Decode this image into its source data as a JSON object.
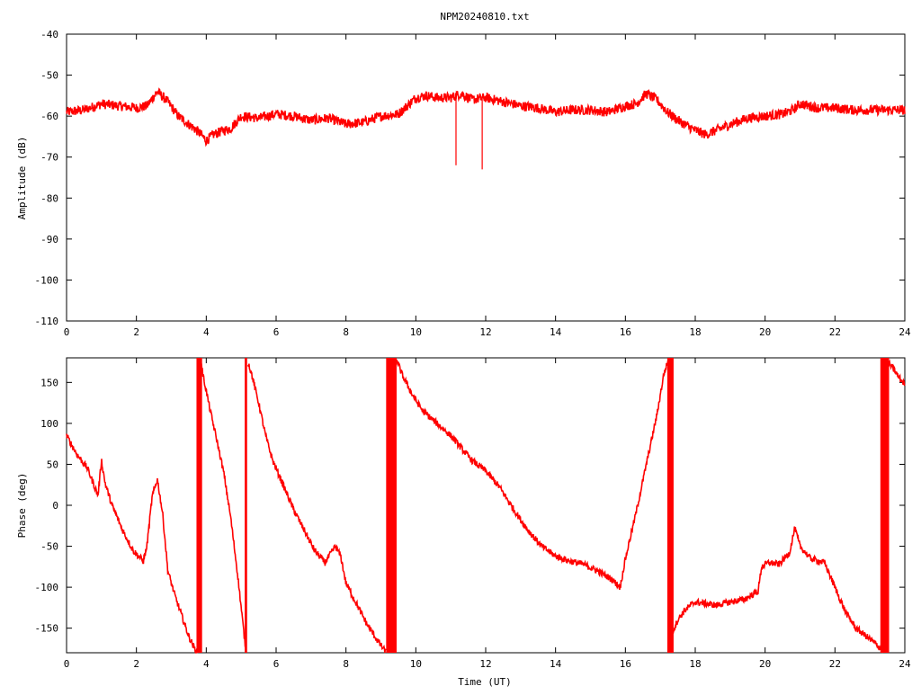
{
  "figure": {
    "title": "NPM20240810.txt",
    "xlabel": "Time (UT)"
  },
  "colors": {
    "series": "#ff0000",
    "axis": "#000000",
    "background": "#ffffff"
  },
  "chart_data": [
    {
      "type": "line",
      "id": "amplitude",
      "title": "NPM20240810.txt",
      "xlabel": "",
      "ylabel": "Amplitude (dB)",
      "xlim": [
        0,
        24
      ],
      "ylim": [
        -110,
        -40
      ],
      "xticks": [
        0,
        2,
        4,
        6,
        8,
        10,
        12,
        14,
        16,
        18,
        20,
        22,
        24
      ],
      "yticks": [
        -110,
        -100,
        -90,
        -80,
        -70,
        -60,
        -50,
        -40
      ],
      "grid": false,
      "series": [
        {
          "x": [
            0,
            0.5,
            1.0,
            1.5,
            2.0,
            2.3,
            2.6,
            2.9,
            3.2,
            3.5,
            3.8,
            4.0,
            4.2,
            4.5,
            4.7,
            5.0,
            5.5,
            6.0,
            6.5,
            7.0,
            7.5,
            8.0,
            8.5,
            9.0,
            9.5,
            10.0,
            10.3,
            10.6,
            11.0,
            11.3,
            11.6,
            12.0,
            12.5,
            13.0,
            13.5,
            14.0,
            14.5,
            15.0,
            15.5,
            16.0,
            16.3,
            16.6,
            16.9,
            17.2,
            17.5,
            17.8,
            18.0,
            18.3,
            18.6,
            19.0,
            19.5,
            20.0,
            20.5,
            20.8,
            21.0,
            21.5,
            22.0,
            22.5,
            23.0,
            23.5,
            24.0
          ],
          "y": [
            -59,
            -58.5,
            -57,
            -57.5,
            -58,
            -57.5,
            -54,
            -56.5,
            -60,
            -62,
            -64,
            -66,
            -64.5,
            -63.5,
            -63,
            -60,
            -60.5,
            -59.5,
            -60,
            -61,
            -60.5,
            -62,
            -61.5,
            -60,
            -59.5,
            -55.5,
            -55,
            -55.5,
            -55.5,
            -54.5,
            -56,
            -55.5,
            -56.5,
            -57.5,
            -58,
            -59,
            -58.5,
            -58.5,
            -59,
            -57.5,
            -57,
            -54.5,
            -56,
            -59,
            -61,
            -62.5,
            -63.5,
            -64.5,
            -63.5,
            -62,
            -60.5,
            -60,
            -59.5,
            -58.5,
            -57,
            -58,
            -58,
            -58.5,
            -58.5,
            -58.5,
            -58.5
          ],
          "spikes": [
            {
              "x": 11.15,
              "y": -72
            },
            {
              "x": 11.9,
              "y": -73
            }
          ],
          "noise_db": 1.2
        }
      ]
    },
    {
      "type": "line",
      "id": "phase",
      "xlabel": "Time (UT)",
      "ylabel": "Phase (deg)",
      "xlim": [
        0,
        24
      ],
      "ylim": [
        -180,
        180
      ],
      "xticks": [
        0,
        2,
        4,
        6,
        8,
        10,
        12,
        14,
        16,
        18,
        20,
        22,
        24
      ],
      "yticks": [
        -150,
        -100,
        -50,
        0,
        50,
        100,
        150
      ],
      "grid": false,
      "series": [
        {
          "segments": [
            {
              "x": [
                0,
                0.3,
                0.6,
                0.9,
                1.0,
                1.1,
                1.3,
                1.6,
                1.9,
                2.2,
                2.3,
                2.45,
                2.6,
                2.75,
                2.9,
                3.1,
                3.3,
                3.5,
                3.7,
                3.78
              ],
              "y": [
                85,
                62,
                45,
                12,
                55,
                28,
                0,
                -30,
                -55,
                -68,
                -50,
                10,
                32,
                -10,
                -80,
                -110,
                -135,
                -160,
                -178,
                -180
              ]
            },
            {
              "x": [
                3.85,
                3.9,
                4.0,
                4.1,
                4.3,
                4.5,
                4.7,
                4.9,
                5.1,
                5.15
              ],
              "y": [
                178,
                160,
                140,
                118,
                80,
                40,
                -15,
                -85,
                -165,
                -180
              ]
            },
            {
              "x": [
                5.2,
                5.3,
                5.5,
                5.7,
                5.9,
                6.2,
                6.5,
                6.8,
                7.1,
                7.4,
                7.7,
                7.85,
                8.0,
                8.3,
                8.6,
                8.9,
                9.15
              ],
              "y": [
                175,
                160,
                125,
                85,
                55,
                25,
                -5,
                -30,
                -55,
                -70,
                -50,
                -62,
                -95,
                -120,
                -145,
                -165,
                -180
              ]
            },
            {
              "x": [
                9.45,
                9.6,
                9.9,
                10.2,
                10.6,
                11.0,
                11.3,
                11.6,
                12.0,
                12.4,
                12.8,
                13.2,
                13.6,
                14.0,
                14.4,
                14.8,
                15.2,
                15.6,
                15.85,
                16.0,
                16.3,
                16.6,
                16.9,
                17.1,
                17.25
              ],
              "y": [
                178,
                160,
                135,
                115,
                100,
                85,
                70,
                55,
                42,
                22,
                -5,
                -30,
                -50,
                -62,
                -68,
                -72,
                -80,
                -90,
                -100,
                -65,
                -10,
                50,
                110,
                160,
                180
              ]
            },
            {
              "x": [
                17.3,
                17.5,
                17.7,
                18.0,
                18.3,
                18.6,
                19.0,
                19.4,
                19.8,
                19.9,
                20.1,
                20.4,
                20.7,
                20.85,
                21.0,
                21.3,
                21.7,
                22.0,
                22.3,
                22.6,
                22.9,
                23.2,
                23.4
              ],
              "y": [
                -160,
                -140,
                -128,
                -118,
                -120,
                -122,
                -118,
                -115,
                -105,
                -75,
                -70,
                -72,
                -58,
                -28,
                -50,
                -65,
                -70,
                -100,
                -130,
                -150,
                -160,
                -170,
                -180
              ]
            },
            {
              "x": [
                23.5,
                23.7,
                23.85,
                24.0
              ],
              "y": [
                175,
                165,
                155,
                148
              ]
            }
          ],
          "bands": [
            {
              "x0": 3.72,
              "x1": 3.88
            },
            {
              "x0": 5.1,
              "x1": 5.17
            },
            {
              "x0": 9.15,
              "x1": 9.45
            },
            {
              "x0": 17.2,
              "x1": 17.38
            },
            {
              "x0": 23.3,
              "x1": 23.55
            }
          ],
          "noise_deg": 4
        }
      ]
    }
  ]
}
